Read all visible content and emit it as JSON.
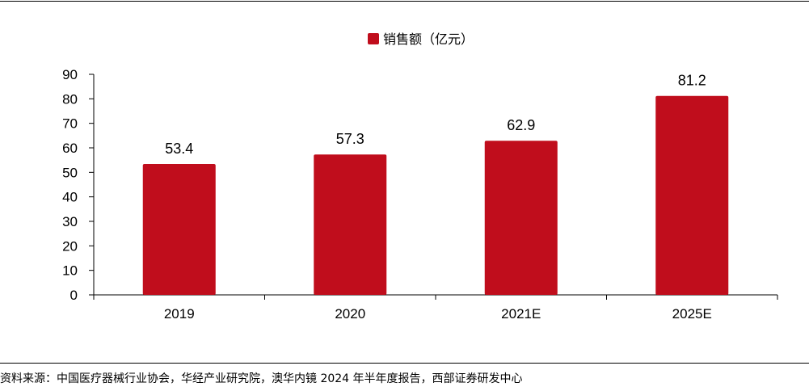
{
  "chart_data": {
    "type": "bar",
    "categories": [
      "2019",
      "2020",
      "2021E",
      "2025E"
    ],
    "series": [
      {
        "name": "销售额（亿元）",
        "values": [
          53.4,
          57.3,
          62.9,
          81.2
        ],
        "value_labels": [
          "53.4",
          "57.3",
          "62.9",
          "81.2"
        ],
        "color": "#C00D1C"
      }
    ],
    "y_ticks": [
      "0",
      "10",
      "20",
      "30",
      "40",
      "50",
      "60",
      "70",
      "80",
      "90"
    ],
    "ylim": [
      0,
      90
    ],
    "grid": false,
    "legend_position": "top-center"
  },
  "source_note": "资料来源：中国医疗器械行业协会，华经产业研究院，澳华内镜 2024 年半年度报告，西部证券研发中心"
}
